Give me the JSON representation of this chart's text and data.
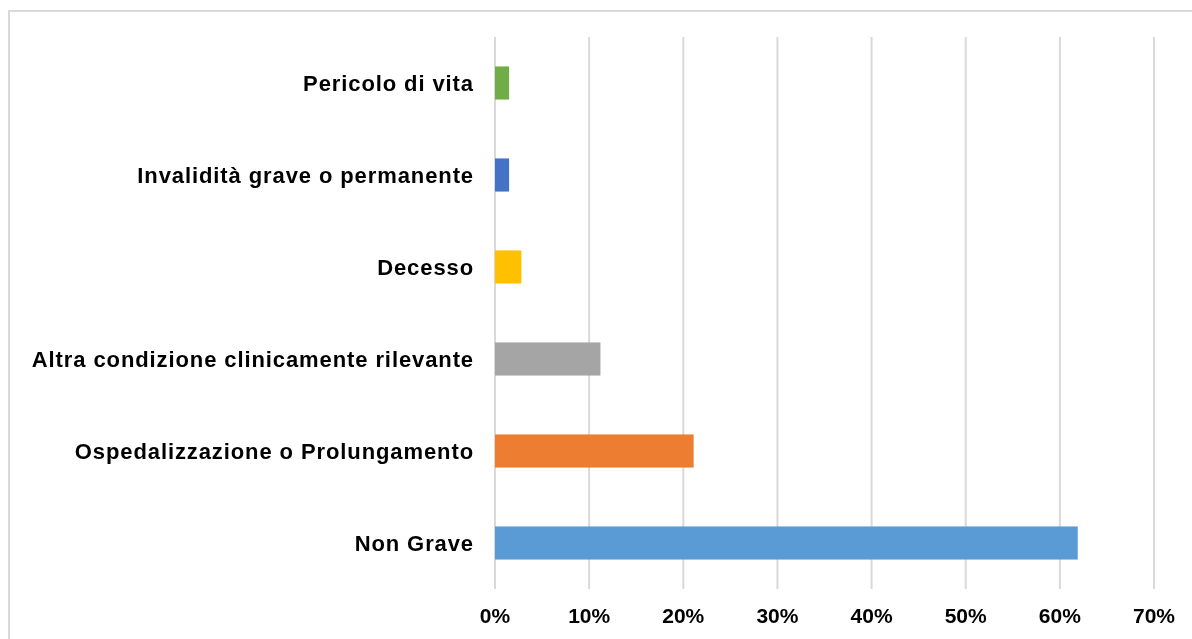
{
  "chart_data": {
    "type": "bar",
    "orientation": "horizontal",
    "categories": [
      "Pericolo di vita",
      "Invalidità grave o permanente",
      "Decesso",
      "Altra condizione clinicamente rilevante",
      "Ospedalizzazione o Prolungamento",
      "Non Grave"
    ],
    "values": [
      1.5,
      1.5,
      2.8,
      11.2,
      21.1,
      61.9
    ],
    "colors": [
      "#70ad47",
      "#4472c4",
      "#ffc000",
      "#a5a5a5",
      "#ed7d31",
      "#5b9bd5"
    ],
    "xlim": [
      0,
      70
    ],
    "xticks": [
      {
        "value": 0,
        "label": "0%"
      },
      {
        "value": 10,
        "label": "10%"
      },
      {
        "value": 20,
        "label": "20%"
      },
      {
        "value": 30,
        "label": "30%"
      },
      {
        "value": 40,
        "label": "40%"
      },
      {
        "value": 50,
        "label": "50%"
      },
      {
        "value": 60,
        "label": "60%"
      },
      {
        "value": 70,
        "label": "70%"
      }
    ],
    "grid": "x"
  }
}
